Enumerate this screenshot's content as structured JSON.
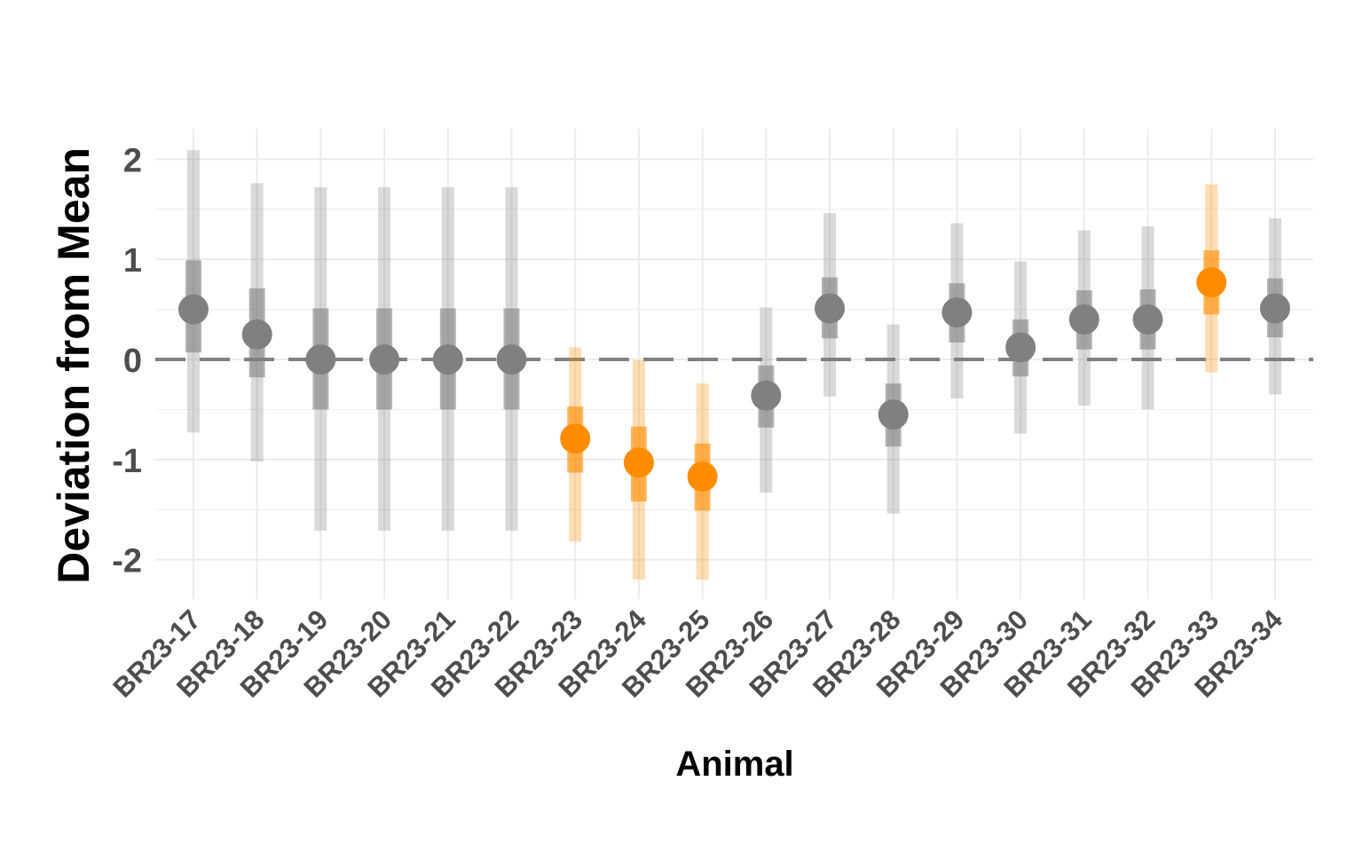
{
  "chart_data": {
    "type": "scatter",
    "title": "",
    "xlabel": "Animal",
    "ylabel": "Deviation from Mean",
    "ylim": [
      -2.4,
      2.3
    ],
    "y_ticks": [
      -2,
      -1,
      0,
      1,
      2
    ],
    "y_tick_labels": [
      "-2",
      "-1",
      "0",
      "1",
      "2"
    ],
    "reference_line": 0,
    "grid": true,
    "legend": "none",
    "colors": {
      "normal": "#808080",
      "highlight": "#ff8c00",
      "grid": "#ebebeb",
      "reference": "#808080"
    },
    "points": [
      {
        "animal": "BR23-17",
        "mean": 0.5,
        "inner": [
          0.07,
          0.99
        ],
        "outer": [
          -0.73,
          2.09
        ],
        "highlight": false
      },
      {
        "animal": "BR23-18",
        "mean": 0.25,
        "inner": [
          -0.18,
          0.71
        ],
        "outer": [
          -1.02,
          1.76
        ],
        "highlight": false
      },
      {
        "animal": "BR23-19",
        "mean": 0.0,
        "inner": [
          -0.5,
          0.51
        ],
        "outer": [
          -1.71,
          1.72
        ],
        "highlight": false
      },
      {
        "animal": "BR23-20",
        "mean": 0.0,
        "inner": [
          -0.5,
          0.51
        ],
        "outer": [
          -1.71,
          1.72
        ],
        "highlight": false
      },
      {
        "animal": "BR23-21",
        "mean": 0.0,
        "inner": [
          -0.5,
          0.51
        ],
        "outer": [
          -1.71,
          1.72
        ],
        "highlight": false
      },
      {
        "animal": "BR23-22",
        "mean": 0.0,
        "inner": [
          -0.5,
          0.51
        ],
        "outer": [
          -1.71,
          1.72
        ],
        "highlight": false
      },
      {
        "animal": "BR23-23",
        "mean": -0.79,
        "inner": [
          -1.13,
          -0.47
        ],
        "outer": [
          -1.82,
          0.12
        ],
        "highlight": true
      },
      {
        "animal": "BR23-24",
        "mean": -1.03,
        "inner": [
          -1.42,
          -0.67
        ],
        "outer": [
          -2.2,
          -0.01
        ],
        "highlight": true
      },
      {
        "animal": "BR23-25",
        "mean": -1.17,
        "inner": [
          -1.51,
          -0.84
        ],
        "outer": [
          -2.2,
          -0.24
        ],
        "highlight": true
      },
      {
        "animal": "BR23-26",
        "mean": -0.36,
        "inner": [
          -0.68,
          -0.06
        ],
        "outer": [
          -1.33,
          0.52
        ],
        "highlight": false
      },
      {
        "animal": "BR23-27",
        "mean": 0.51,
        "inner": [
          0.21,
          0.82
        ],
        "outer": [
          -0.37,
          1.46
        ],
        "highlight": false
      },
      {
        "animal": "BR23-28",
        "mean": -0.55,
        "inner": [
          -0.87,
          -0.24
        ],
        "outer": [
          -1.54,
          0.35
        ],
        "highlight": false
      },
      {
        "animal": "BR23-29",
        "mean": 0.47,
        "inner": [
          0.17,
          0.76
        ],
        "outer": [
          -0.39,
          1.36
        ],
        "highlight": false
      },
      {
        "animal": "BR23-30",
        "mean": 0.12,
        "inner": [
          -0.17,
          0.4
        ],
        "outer": [
          -0.74,
          0.98
        ],
        "highlight": false
      },
      {
        "animal": "BR23-31",
        "mean": 0.4,
        "inner": [
          0.1,
          0.69
        ],
        "outer": [
          -0.46,
          1.29
        ],
        "highlight": false
      },
      {
        "animal": "BR23-32",
        "mean": 0.4,
        "inner": [
          0.1,
          0.7
        ],
        "outer": [
          -0.5,
          1.33
        ],
        "highlight": false
      },
      {
        "animal": "BR23-33",
        "mean": 0.77,
        "inner": [
          0.45,
          1.09
        ],
        "outer": [
          -0.13,
          1.75
        ],
        "highlight": true
      },
      {
        "animal": "BR23-34",
        "mean": 0.51,
        "inner": [
          0.22,
          0.81
        ],
        "outer": [
          -0.35,
          1.41
        ],
        "highlight": false
      }
    ]
  }
}
